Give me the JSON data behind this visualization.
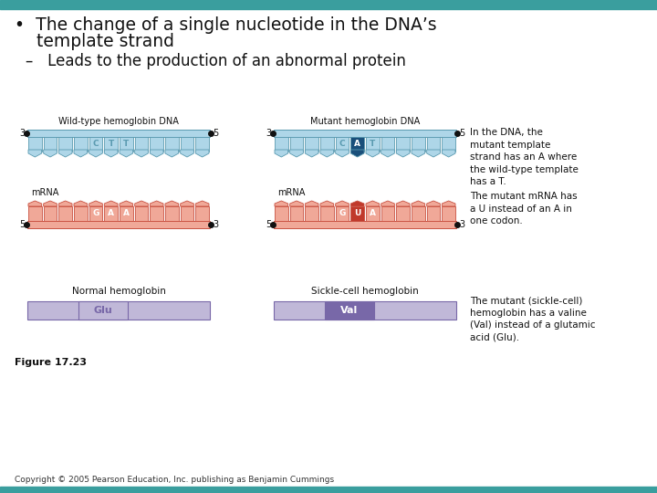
{
  "bg_color": "#ffffff",
  "top_bar_color": "#3a9e9e",
  "title_line1": "•  The change of a single nucleotide in the DNA’s",
  "title_line2": "    template strand",
  "subtitle_text": "–   Leads to the production of an abnormal protein",
  "dna_color_light": "#aed6e8",
  "dna_color_dark": "#5a9ab0",
  "dna_highlight_blue": "#1a4f7a",
  "mrna_color_light": "#f0a898",
  "mrna_color_dark": "#c85040",
  "mrna_highlight_red": "#c0392b",
  "protein_color_light": "#c0b8d8",
  "protein_color_dark": "#7868a8",
  "caption1": "In the DNA, the\nmutant template\nstrand has an A where\nthe wild-type template\nhas a T.",
  "caption2": "The mutant mRNA has\na U instead of an A in\none codon.",
  "caption3": "The mutant (sickle-cell)\nhemoglobin has a valine\n(Val) instead of a glutamic\nacid (Glu).",
  "figure_label": "Figure 17.23",
  "copyright": "Copyright © 2005 Pearson Education, Inc. publishing as Benjamin Cummings",
  "wt_dna_label": "Wild-type hemoglobin DNA",
  "mut_dna_label": "Mutant hemoglobin DNA",
  "wt_mrna_label": "mRNA",
  "mut_mrna_label": "mRNA",
  "normal_hemo_label": "Normal hemoglobin",
  "sickle_hemo_label": "Sickle-cell hemoglobin",
  "glu_label": "Glu",
  "val_label": "Val"
}
